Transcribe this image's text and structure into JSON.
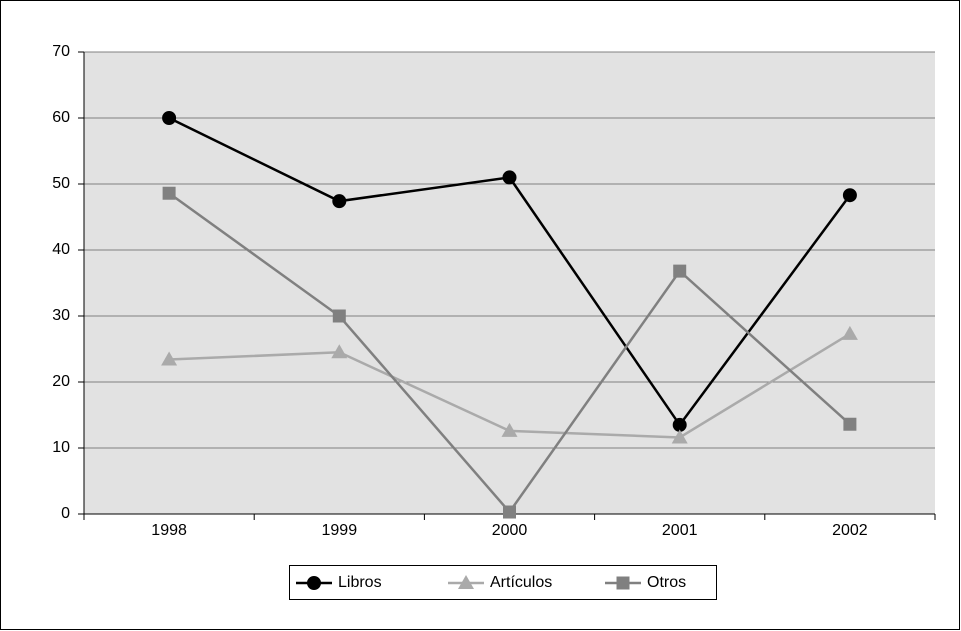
{
  "chart_data": {
    "type": "line",
    "categories": [
      "1998",
      "1999",
      "2000",
      "2001",
      "2002"
    ],
    "series": [
      {
        "name": "Libros",
        "color": "#000000",
        "marker": "circle",
        "values": [
          60,
          47.4,
          51,
          13.5,
          48.3
        ]
      },
      {
        "name": "Artículos",
        "color": "#aaaaaa",
        "marker": "triangle",
        "values": [
          23.4,
          24.5,
          12.6,
          11.6,
          27.3
        ]
      },
      {
        "name": "Otros",
        "color": "#808080",
        "marker": "square",
        "values": [
          48.6,
          30,
          0.3,
          36.8,
          13.6
        ]
      }
    ],
    "ylim": [
      0,
      70
    ],
    "yticks": [
      0,
      10,
      20,
      30,
      40,
      50,
      60,
      70
    ],
    "grid": true,
    "legend": "bottom"
  }
}
